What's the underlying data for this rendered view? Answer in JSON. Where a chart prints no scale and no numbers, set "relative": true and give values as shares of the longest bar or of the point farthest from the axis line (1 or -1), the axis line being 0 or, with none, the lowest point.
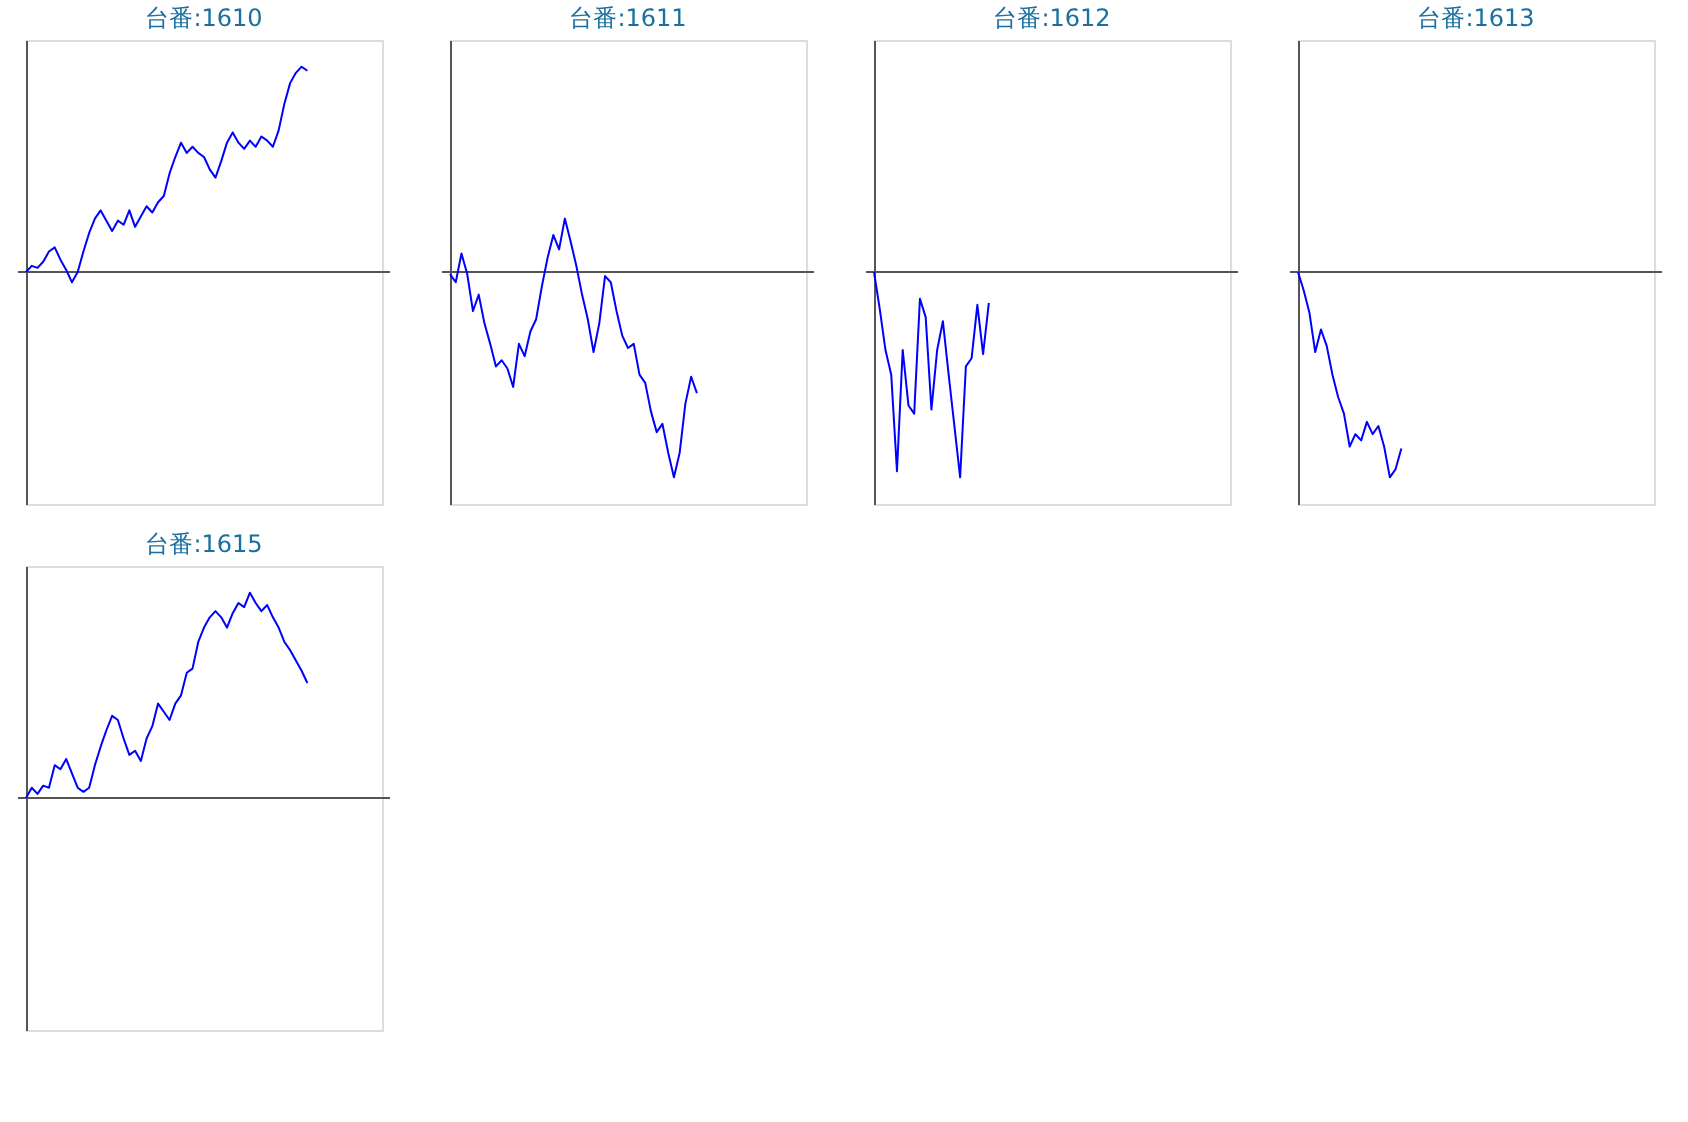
{
  "chart_data": [
    {
      "type": "line",
      "title": "台番:1610",
      "relative": true,
      "tick_labels": false,
      "categories": [
        null,
        null,
        null,
        null,
        null,
        null,
        null,
        null,
        null,
        null,
        null,
        null,
        null,
        null,
        null,
        null,
        null,
        null,
        null,
        null,
        null,
        null,
        null,
        null,
        null,
        null,
        null,
        null,
        null,
        null,
        null,
        null,
        null,
        null,
        null,
        null,
        null,
        null,
        null,
        null,
        null,
        null,
        null,
        null,
        null,
        null,
        null,
        null,
        null,
        null,
        null,
        null,
        null,
        null,
        null,
        null,
        null,
        null,
        null,
        null
      ],
      "series": [
        {
          "color": "#0000ff",
          "values": [
            0,
            0.03,
            0.02,
            0.05,
            0.1,
            0.12,
            0.06,
            0.01,
            -0.05,
            0,
            0.1,
            0.19,
            0.26,
            0.3,
            0.25,
            0.2,
            0.25,
            0.23,
            0.3,
            0.22,
            0.27,
            0.32,
            0.29,
            0.34,
            0.37,
            0.48,
            0.56,
            0.63,
            0.58,
            0.61,
            0.58,
            0.56,
            0.5,
            0.46,
            0.54,
            0.63,
            0.68,
            0.63,
            0.6,
            0.64,
            0.61,
            0.66,
            0.64,
            0.61,
            0.69,
            0.82,
            0.92,
            0.97,
            1,
            0.98,
            null,
            null,
            null,
            null,
            null,
            null,
            null,
            null,
            null,
            null
          ]
        }
      ]
    },
    {
      "type": "line",
      "title": "台番:1611",
      "relative": true,
      "tick_labels": false,
      "categories": [
        null,
        null,
        null,
        null,
        null,
        null,
        null,
        null,
        null,
        null,
        null,
        null,
        null,
        null,
        null,
        null,
        null,
        null,
        null,
        null,
        null,
        null,
        null,
        null,
        null,
        null,
        null,
        null,
        null,
        null,
        null,
        null,
        null,
        null,
        null,
        null,
        null,
        null,
        null,
        null,
        null,
        null,
        null,
        null,
        null,
        null,
        null,
        null,
        null,
        null,
        null,
        null,
        null,
        null,
        null,
        null,
        null,
        null,
        null,
        null
      ],
      "series": [
        {
          "color": "#0000ff",
          "values": [
            -0.01,
            -0.05,
            0.09,
            -0.01,
            -0.19,
            -0.11,
            -0.25,
            -0.35,
            -0.46,
            -0.43,
            -0.47,
            -0.56,
            -0.35,
            -0.41,
            -0.29,
            -0.23,
            -0.07,
            0.07,
            0.18,
            0.11,
            0.26,
            0.15,
            0.03,
            -0.11,
            -0.23,
            -0.39,
            -0.25,
            -0.02,
            -0.05,
            -0.19,
            -0.31,
            -0.37,
            -0.35,
            -0.5,
            -0.54,
            -0.68,
            -0.78,
            -0.74,
            -0.88,
            -1,
            -0.88,
            -0.64,
            -0.51,
            -0.59,
            null,
            null,
            null,
            null,
            null,
            null,
            null,
            null,
            null,
            null,
            null,
            null,
            null,
            null,
            null,
            null
          ]
        }
      ]
    },
    {
      "type": "line",
      "title": "台番:1612",
      "relative": true,
      "tick_labels": false,
      "categories": [
        null,
        null,
        null,
        null,
        null,
        null,
        null,
        null,
        null,
        null,
        null,
        null,
        null,
        null,
        null,
        null,
        null,
        null,
        null,
        null,
        null,
        null,
        null,
        null,
        null,
        null,
        null,
        null,
        null,
        null,
        null,
        null,
        null,
        null,
        null,
        null,
        null,
        null,
        null,
        null,
        null,
        null,
        null,
        null,
        null,
        null,
        null,
        null,
        null,
        null,
        null,
        null,
        null,
        null,
        null,
        null,
        null,
        null,
        null,
        null
      ],
      "series": [
        {
          "color": "#0000ff",
          "values": [
            0,
            -0.18,
            -0.38,
            -0.5,
            -0.97,
            -0.38,
            -0.65,
            -0.69,
            -0.13,
            -0.22,
            -0.67,
            -0.38,
            -0.24,
            -0.5,
            -0.75,
            -1,
            -0.46,
            -0.42,
            -0.16,
            -0.4,
            -0.15,
            null,
            null,
            null,
            null,
            null,
            null,
            null,
            null,
            null,
            null,
            null,
            null,
            null,
            null,
            null,
            null,
            null,
            null,
            null,
            null,
            null,
            null,
            null,
            null,
            null,
            null,
            null,
            null,
            null,
            null,
            null,
            null,
            null,
            null,
            null,
            null,
            null,
            null,
            null
          ]
        }
      ]
    },
    {
      "type": "line",
      "title": "台番:1613",
      "relative": true,
      "tick_labels": false,
      "categories": [
        null,
        null,
        null,
        null,
        null,
        null,
        null,
        null,
        null,
        null,
        null,
        null,
        null,
        null,
        null,
        null,
        null,
        null,
        null,
        null,
        null,
        null,
        null,
        null,
        null,
        null,
        null,
        null,
        null,
        null,
        null,
        null,
        null,
        null,
        null,
        null,
        null,
        null,
        null,
        null,
        null,
        null,
        null,
        null,
        null,
        null,
        null,
        null,
        null,
        null,
        null,
        null,
        null,
        null,
        null,
        null,
        null,
        null,
        null,
        null
      ],
      "series": [
        {
          "color": "#0000ff",
          "values": [
            0,
            -0.09,
            -0.2,
            -0.39,
            -0.28,
            -0.36,
            -0.5,
            -0.61,
            -0.69,
            -0.85,
            -0.79,
            -0.82,
            -0.73,
            -0.79,
            -0.75,
            -0.85,
            -1,
            -0.96,
            -0.86,
            null,
            null,
            null,
            null,
            null,
            null,
            null,
            null,
            null,
            null,
            null,
            null,
            null,
            null,
            null,
            null,
            null,
            null,
            null,
            null,
            null,
            null,
            null,
            null,
            null,
            null,
            null,
            null,
            null,
            null,
            null,
            null,
            null,
            null,
            null,
            null,
            null,
            null,
            null,
            null,
            null
          ]
        }
      ]
    },
    {
      "type": "line",
      "title": "台番:1615",
      "relative": true,
      "tick_labels": false,
      "categories": [
        null,
        null,
        null,
        null,
        null,
        null,
        null,
        null,
        null,
        null,
        null,
        null,
        null,
        null,
        null,
        null,
        null,
        null,
        null,
        null,
        null,
        null,
        null,
        null,
        null,
        null,
        null,
        null,
        null,
        null,
        null,
        null,
        null,
        null,
        null,
        null,
        null,
        null,
        null,
        null,
        null,
        null,
        null,
        null,
        null,
        null,
        null,
        null,
        null,
        null,
        null,
        null,
        null,
        null,
        null,
        null,
        null,
        null,
        null,
        null
      ],
      "series": [
        {
          "color": "#0000ff",
          "values": [
            0,
            0.05,
            0.02,
            0.06,
            0.05,
            0.16,
            0.14,
            0.19,
            0.12,
            0.05,
            0.03,
            0.05,
            0.16,
            0.25,
            0.33,
            0.4,
            0.38,
            0.29,
            0.21,
            0.23,
            0.18,
            0.29,
            0.35,
            0.46,
            0.42,
            0.38,
            0.46,
            0.5,
            0.61,
            0.63,
            0.76,
            0.83,
            0.88,
            0.91,
            0.88,
            0.83,
            0.9,
            0.95,
            0.93,
            1,
            0.95,
            0.91,
            0.94,
            0.88,
            0.83,
            0.76,
            0.72,
            0.67,
            0.62,
            0.56,
            null,
            null,
            null,
            null,
            null,
            null,
            null,
            null,
            null,
            null
          ]
        }
      ]
    }
  ]
}
